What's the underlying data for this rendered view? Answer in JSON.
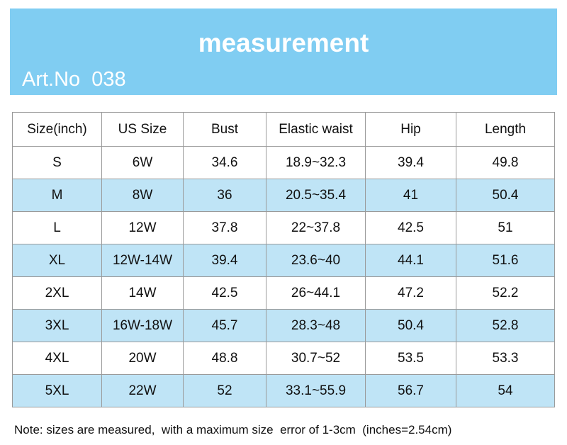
{
  "header": {
    "title": "measurement",
    "art_no": "Art.No  038"
  },
  "table": {
    "columns": [
      "Size(inch)",
      "US Size",
      "Bust",
      "Elastic waist",
      "Hip",
      "Length"
    ],
    "rows": [
      [
        "S",
        "6W",
        "34.6",
        "18.9~32.3",
        "39.4",
        "49.8"
      ],
      [
        "M",
        "8W",
        "36",
        "20.5~35.4",
        "41",
        "50.4"
      ],
      [
        "L",
        "12W",
        "37.8",
        "22~37.8",
        "42.5",
        "51"
      ],
      [
        "XL",
        "12W-14W",
        "39.4",
        "23.6~40",
        "44.1",
        "51.6"
      ],
      [
        "2XL",
        "14W",
        "42.5",
        "26~44.1",
        "47.2",
        "52.2"
      ],
      [
        "3XL",
        "16W-18W",
        "45.7",
        "28.3~48",
        "50.4",
        "52.8"
      ],
      [
        "4XL",
        "20W",
        "48.8",
        "30.7~52",
        "53.5",
        "53.3"
      ],
      [
        "5XL",
        "22W",
        "52",
        "33.1~55.9",
        "56.7",
        "54"
      ]
    ]
  },
  "note": "Note: sizes are measured,  with a maximum size  error of 1-3cm  (inches=2.54cm)"
}
